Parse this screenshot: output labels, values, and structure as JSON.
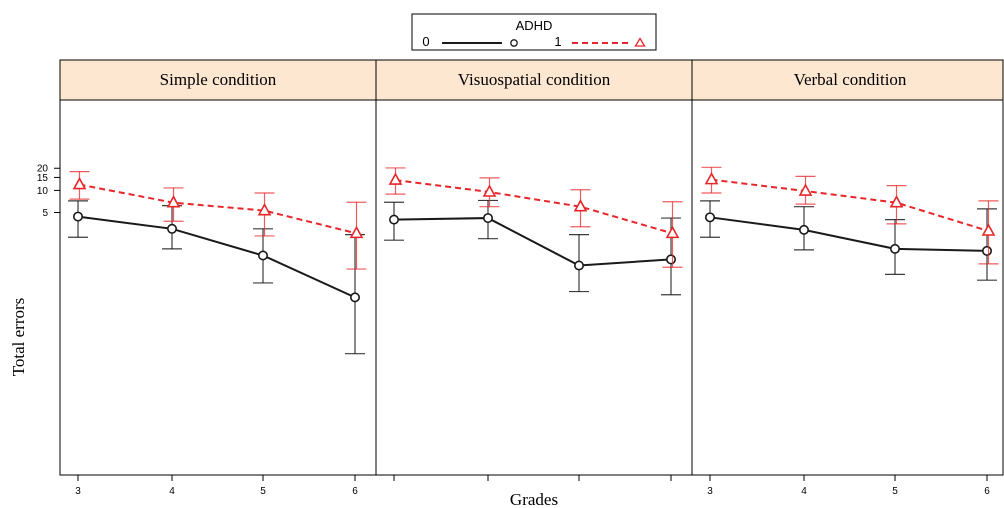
{
  "chart_data": {
    "type": "line",
    "xlabel": "Grades",
    "ylabel": "Total errors",
    "y_scale": "log",
    "y_ticks": [
      5,
      10,
      15,
      20
    ],
    "legend": {
      "title": "ADHD",
      "placement": "top-center",
      "entries": [
        {
          "key": "0",
          "marker": "circle",
          "line": "solid",
          "color": "#1a1a1a"
        },
        {
          "key": "1",
          "marker": "triangle",
          "line": "dashed",
          "color": "#e8262a"
        }
      ]
    },
    "panels": [
      {
        "title": "Simple condition",
        "x_tick_labels": [
          "3",
          "4",
          "5",
          "6"
        ],
        "x": [
          3,
          4,
          5,
          6
        ],
        "series": [
          {
            "name": "0",
            "values": [
              4.4,
              3.0,
              1.3,
              0.35
            ],
            "lower": [
              2.3,
              1.6,
              0.55,
              0.06
            ],
            "upper": [
              7.2,
              6.2,
              3.0,
              2.5
            ]
          },
          {
            "name": "1",
            "values": [
              12.0,
              6.8,
              5.3,
              2.6
            ],
            "lower": [
              7.6,
              3.8,
              2.4,
              0.85
            ],
            "upper": [
              18.0,
              10.8,
              9.2,
              6.9
            ]
          }
        ]
      },
      {
        "title": "Visuospatial condition",
        "x_tick_labels": [
          "",
          "",
          "",
          ""
        ],
        "x": [
          3,
          4,
          5,
          6
        ],
        "series": [
          {
            "name": "0",
            "values": [
              4.0,
              4.2,
              0.95,
              1.15
            ],
            "lower": [
              2.1,
              2.2,
              0.42,
              0.38
            ],
            "upper": [
              6.9,
              7.3,
              2.5,
              4.2
            ]
          },
          {
            "name": "1",
            "values": [
              13.8,
              9.5,
              6.0,
              2.6
            ],
            "lower": [
              8.9,
              6.0,
              3.2,
              0.9
            ],
            "upper": [
              20.2,
              14.8,
              10.2,
              7.0
            ]
          }
        ]
      },
      {
        "title": "Verbal condition",
        "x_tick_labels": [
          "3",
          "4",
          "5",
          "6"
        ],
        "x": [
          3,
          4,
          5,
          6
        ],
        "series": [
          {
            "name": "0",
            "values": [
              4.3,
              2.9,
              1.6,
              1.5
            ],
            "lower": [
              2.3,
              1.55,
              0.72,
              0.6
            ],
            "upper": [
              7.2,
              6.0,
              4.0,
              5.6
            ]
          },
          {
            "name": "1",
            "values": [
              14.0,
              9.8,
              6.8,
              2.8
            ],
            "lower": [
              9.2,
              6.5,
              3.5,
              1.0
            ],
            "upper": [
              20.6,
              15.5,
              11.6,
              7.2
            ]
          }
        ]
      }
    ]
  }
}
